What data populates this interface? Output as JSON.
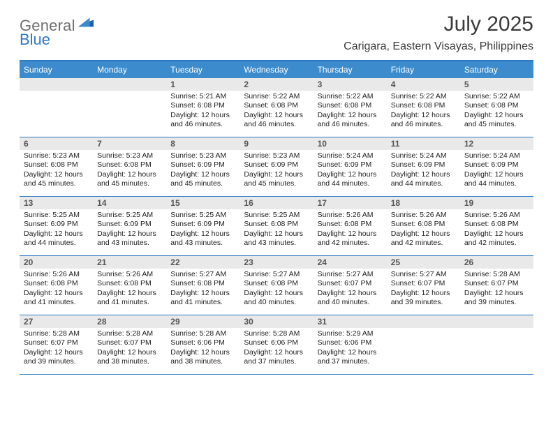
{
  "brand": {
    "part1": "General",
    "part2": "Blue"
  },
  "colors": {
    "accent": "#3c8ccd",
    "accent_border": "#2f78c3",
    "daynum_bg": "#e9e9e9",
    "text_dark": "#212121",
    "text_grey": "#6f6f6f"
  },
  "title": "July 2025",
  "location": "Carigara, Eastern Visayas, Philippines",
  "day_names": [
    "Sunday",
    "Monday",
    "Tuesday",
    "Wednesday",
    "Thursday",
    "Friday",
    "Saturday"
  ],
  "weeks": [
    [
      {
        "n": "",
        "sr": "",
        "ss": "",
        "dl1": "",
        "dl2": ""
      },
      {
        "n": "",
        "sr": "",
        "ss": "",
        "dl1": "",
        "dl2": ""
      },
      {
        "n": "1",
        "sr": "Sunrise: 5:21 AM",
        "ss": "Sunset: 6:08 PM",
        "dl1": "Daylight: 12 hours",
        "dl2": "and 46 minutes."
      },
      {
        "n": "2",
        "sr": "Sunrise: 5:22 AM",
        "ss": "Sunset: 6:08 PM",
        "dl1": "Daylight: 12 hours",
        "dl2": "and 46 minutes."
      },
      {
        "n": "3",
        "sr": "Sunrise: 5:22 AM",
        "ss": "Sunset: 6:08 PM",
        "dl1": "Daylight: 12 hours",
        "dl2": "and 46 minutes."
      },
      {
        "n": "4",
        "sr": "Sunrise: 5:22 AM",
        "ss": "Sunset: 6:08 PM",
        "dl1": "Daylight: 12 hours",
        "dl2": "and 46 minutes."
      },
      {
        "n": "5",
        "sr": "Sunrise: 5:22 AM",
        "ss": "Sunset: 6:08 PM",
        "dl1": "Daylight: 12 hours",
        "dl2": "and 45 minutes."
      }
    ],
    [
      {
        "n": "6",
        "sr": "Sunrise: 5:23 AM",
        "ss": "Sunset: 6:08 PM",
        "dl1": "Daylight: 12 hours",
        "dl2": "and 45 minutes."
      },
      {
        "n": "7",
        "sr": "Sunrise: 5:23 AM",
        "ss": "Sunset: 6:08 PM",
        "dl1": "Daylight: 12 hours",
        "dl2": "and 45 minutes."
      },
      {
        "n": "8",
        "sr": "Sunrise: 5:23 AM",
        "ss": "Sunset: 6:09 PM",
        "dl1": "Daylight: 12 hours",
        "dl2": "and 45 minutes."
      },
      {
        "n": "9",
        "sr": "Sunrise: 5:23 AM",
        "ss": "Sunset: 6:09 PM",
        "dl1": "Daylight: 12 hours",
        "dl2": "and 45 minutes."
      },
      {
        "n": "10",
        "sr": "Sunrise: 5:24 AM",
        "ss": "Sunset: 6:09 PM",
        "dl1": "Daylight: 12 hours",
        "dl2": "and 44 minutes."
      },
      {
        "n": "11",
        "sr": "Sunrise: 5:24 AM",
        "ss": "Sunset: 6:09 PM",
        "dl1": "Daylight: 12 hours",
        "dl2": "and 44 minutes."
      },
      {
        "n": "12",
        "sr": "Sunrise: 5:24 AM",
        "ss": "Sunset: 6:09 PM",
        "dl1": "Daylight: 12 hours",
        "dl2": "and 44 minutes."
      }
    ],
    [
      {
        "n": "13",
        "sr": "Sunrise: 5:25 AM",
        "ss": "Sunset: 6:09 PM",
        "dl1": "Daylight: 12 hours",
        "dl2": "and 44 minutes."
      },
      {
        "n": "14",
        "sr": "Sunrise: 5:25 AM",
        "ss": "Sunset: 6:09 PM",
        "dl1": "Daylight: 12 hours",
        "dl2": "and 43 minutes."
      },
      {
        "n": "15",
        "sr": "Sunrise: 5:25 AM",
        "ss": "Sunset: 6:09 PM",
        "dl1": "Daylight: 12 hours",
        "dl2": "and 43 minutes."
      },
      {
        "n": "16",
        "sr": "Sunrise: 5:25 AM",
        "ss": "Sunset: 6:08 PM",
        "dl1": "Daylight: 12 hours",
        "dl2": "and 43 minutes."
      },
      {
        "n": "17",
        "sr": "Sunrise: 5:26 AM",
        "ss": "Sunset: 6:08 PM",
        "dl1": "Daylight: 12 hours",
        "dl2": "and 42 minutes."
      },
      {
        "n": "18",
        "sr": "Sunrise: 5:26 AM",
        "ss": "Sunset: 6:08 PM",
        "dl1": "Daylight: 12 hours",
        "dl2": "and 42 minutes."
      },
      {
        "n": "19",
        "sr": "Sunrise: 5:26 AM",
        "ss": "Sunset: 6:08 PM",
        "dl1": "Daylight: 12 hours",
        "dl2": "and 42 minutes."
      }
    ],
    [
      {
        "n": "20",
        "sr": "Sunrise: 5:26 AM",
        "ss": "Sunset: 6:08 PM",
        "dl1": "Daylight: 12 hours",
        "dl2": "and 41 minutes."
      },
      {
        "n": "21",
        "sr": "Sunrise: 5:26 AM",
        "ss": "Sunset: 6:08 PM",
        "dl1": "Daylight: 12 hours",
        "dl2": "and 41 minutes."
      },
      {
        "n": "22",
        "sr": "Sunrise: 5:27 AM",
        "ss": "Sunset: 6:08 PM",
        "dl1": "Daylight: 12 hours",
        "dl2": "and 41 minutes."
      },
      {
        "n": "23",
        "sr": "Sunrise: 5:27 AM",
        "ss": "Sunset: 6:08 PM",
        "dl1": "Daylight: 12 hours",
        "dl2": "and 40 minutes."
      },
      {
        "n": "24",
        "sr": "Sunrise: 5:27 AM",
        "ss": "Sunset: 6:07 PM",
        "dl1": "Daylight: 12 hours",
        "dl2": "and 40 minutes."
      },
      {
        "n": "25",
        "sr": "Sunrise: 5:27 AM",
        "ss": "Sunset: 6:07 PM",
        "dl1": "Daylight: 12 hours",
        "dl2": "and 39 minutes."
      },
      {
        "n": "26",
        "sr": "Sunrise: 5:28 AM",
        "ss": "Sunset: 6:07 PM",
        "dl1": "Daylight: 12 hours",
        "dl2": "and 39 minutes."
      }
    ],
    [
      {
        "n": "27",
        "sr": "Sunrise: 5:28 AM",
        "ss": "Sunset: 6:07 PM",
        "dl1": "Daylight: 12 hours",
        "dl2": "and 39 minutes."
      },
      {
        "n": "28",
        "sr": "Sunrise: 5:28 AM",
        "ss": "Sunset: 6:07 PM",
        "dl1": "Daylight: 12 hours",
        "dl2": "and 38 minutes."
      },
      {
        "n": "29",
        "sr": "Sunrise: 5:28 AM",
        "ss": "Sunset: 6:06 PM",
        "dl1": "Daylight: 12 hours",
        "dl2": "and 38 minutes."
      },
      {
        "n": "30",
        "sr": "Sunrise: 5:28 AM",
        "ss": "Sunset: 6:06 PM",
        "dl1": "Daylight: 12 hours",
        "dl2": "and 37 minutes."
      },
      {
        "n": "31",
        "sr": "Sunrise: 5:29 AM",
        "ss": "Sunset: 6:06 PM",
        "dl1": "Daylight: 12 hours",
        "dl2": "and 37 minutes."
      },
      {
        "n": "",
        "sr": "",
        "ss": "",
        "dl1": "",
        "dl2": ""
      },
      {
        "n": "",
        "sr": "",
        "ss": "",
        "dl1": "",
        "dl2": ""
      }
    ]
  ]
}
